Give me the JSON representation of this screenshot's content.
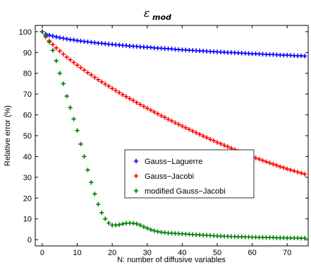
{
  "chart_data": {
    "type": "scatter",
    "title": "ε",
    "title_subscript": "mod",
    "xlabel": "N: number of diffusive variables",
    "ylabel": "Relative error (%)",
    "xlim": [
      -2,
      76
    ],
    "ylim": [
      -3,
      103
    ],
    "xticks": [
      0,
      10,
      20,
      30,
      40,
      50,
      60,
      70
    ],
    "yticks": [
      0,
      10,
      20,
      30,
      40,
      50,
      60,
      70,
      80,
      90,
      100
    ],
    "grid": false,
    "legend_position": "center-right",
    "marker": "+",
    "series": [
      {
        "name": "Gauss−Laguerre",
        "color": "#0000ff",
        "x": [
          0,
          1,
          2,
          3,
          4,
          5,
          6,
          7,
          8,
          9,
          10,
          11,
          12,
          13,
          14,
          15,
          16,
          17,
          18,
          19,
          20,
          21,
          22,
          23,
          24,
          25,
          26,
          27,
          28,
          29,
          30,
          31,
          32,
          33,
          34,
          35,
          36,
          37,
          38,
          39,
          40,
          41,
          42,
          43,
          44,
          45,
          46,
          47,
          48,
          49,
          50,
          51,
          52,
          53,
          54,
          55,
          56,
          57,
          58,
          59,
          60,
          61,
          62,
          63,
          64,
          65,
          66,
          67,
          68,
          69,
          70,
          71,
          72,
          73,
          74,
          75
        ],
        "y": [
          100,
          98.8,
          98.3,
          97.9,
          97.5,
          97.1,
          96.8,
          96.5,
          96.2,
          96.0,
          95.7,
          95.5,
          95.3,
          95.1,
          94.9,
          94.7,
          94.5,
          94.4,
          94.2,
          94.0,
          93.9,
          93.7,
          93.6,
          93.4,
          93.3,
          93.1,
          93.0,
          92.9,
          92.7,
          92.6,
          92.5,
          92.4,
          92.2,
          92.1,
          92.0,
          91.9,
          91.8,
          91.7,
          91.5,
          91.4,
          91.3,
          91.2,
          91.1,
          91.0,
          90.9,
          90.8,
          90.7,
          90.6,
          90.5,
          90.4,
          90.3,
          90.2,
          90.1,
          90.0,
          90.0,
          89.9,
          89.8,
          89.7,
          89.6,
          89.5,
          89.4,
          89.4,
          89.3,
          89.2,
          89.1,
          89.0,
          89.0,
          88.9,
          88.8,
          88.7,
          88.7,
          88.6,
          88.5,
          88.4,
          88.4,
          88.3
        ]
      },
      {
        "name": "Gauss−Jacobi",
        "color": "#ff0000",
        "x": [
          0,
          1,
          2,
          3,
          4,
          5,
          6,
          7,
          8,
          9,
          10,
          11,
          12,
          13,
          14,
          15,
          16,
          17,
          18,
          19,
          20,
          21,
          22,
          23,
          24,
          25,
          26,
          27,
          28,
          29,
          30,
          31,
          32,
          33,
          34,
          35,
          36,
          37,
          38,
          39,
          40,
          41,
          42,
          43,
          44,
          45,
          46,
          47,
          48,
          49,
          50,
          51,
          52,
          53,
          54,
          55,
          56,
          57,
          58,
          59,
          60,
          61,
          62,
          63,
          64,
          65,
          66,
          67,
          68,
          69,
          70,
          71,
          72,
          73,
          74,
          75
        ],
        "y": [
          100,
          97.5,
          95.6,
          93.8,
          92.2,
          90.7,
          89.2,
          87.8,
          86.5,
          85.2,
          83.9,
          82.7,
          81.5,
          80.3,
          79.2,
          78.0,
          76.9,
          75.9,
          74.8,
          73.8,
          72.7,
          71.7,
          70.7,
          69.7,
          68.8,
          67.8,
          66.9,
          65.9,
          65.0,
          64.1,
          63.2,
          62.3,
          61.4,
          60.5,
          59.6,
          58.8,
          57.9,
          57.1,
          56.2,
          55.4,
          54.6,
          53.8,
          53.0,
          52.2,
          51.4,
          50.6,
          49.8,
          49.1,
          48.3,
          47.6,
          46.8,
          46.1,
          45.4,
          44.7,
          44.0,
          43.3,
          42.6,
          41.9,
          41.3,
          40.6,
          40.0,
          39.3,
          38.7,
          38.1,
          37.5,
          36.9,
          36.3,
          35.7,
          35.1,
          34.6,
          34.0,
          33.5,
          33.0,
          32.5,
          32.0,
          31.5
        ]
      },
      {
        "name": "modified Gauss−Jacobi",
        "color": "#007f00",
        "x": [
          0,
          1,
          2,
          3,
          4,
          5,
          6,
          7,
          8,
          9,
          10,
          11,
          12,
          13,
          14,
          15,
          16,
          17,
          18,
          19,
          20,
          21,
          22,
          23,
          24,
          25,
          26,
          27,
          28,
          29,
          30,
          31,
          32,
          33,
          34,
          35,
          36,
          37,
          38,
          39,
          40,
          41,
          42,
          43,
          44,
          45,
          46,
          47,
          48,
          49,
          50,
          51,
          52,
          53,
          54,
          55,
          56,
          57,
          58,
          59,
          60,
          61,
          62,
          63,
          64,
          65,
          66,
          67,
          68,
          69,
          70,
          71,
          72,
          73,
          74,
          75
        ],
        "y": [
          100,
          98,
          95,
          91,
          86,
          80,
          75,
          69,
          63.5,
          58,
          52.5,
          46,
          40,
          33.5,
          27.5,
          22,
          17,
          13,
          10,
          8,
          7,
          7,
          7.2,
          7.6,
          7.9,
          8,
          7.9,
          7.6,
          7,
          6.2,
          5.5,
          4.8,
          4.3,
          3.9,
          3.6,
          3.4,
          3.2,
          3.1,
          3.0,
          2.9,
          2.8,
          2.7,
          2.6,
          2.5,
          2.4,
          2.3,
          2.2,
          2.1,
          2.0,
          1.9,
          1.8,
          1.7,
          1.6,
          1.6,
          1.5,
          1.5,
          1.4,
          1.4,
          1.3,
          1.3,
          1.2,
          1.2,
          1.1,
          1.1,
          1.0,
          1.0,
          1.0,
          0.9,
          0.9,
          0.9,
          0.8,
          0.8,
          0.8,
          0.8,
          0.7,
          0.7
        ]
      }
    ]
  }
}
